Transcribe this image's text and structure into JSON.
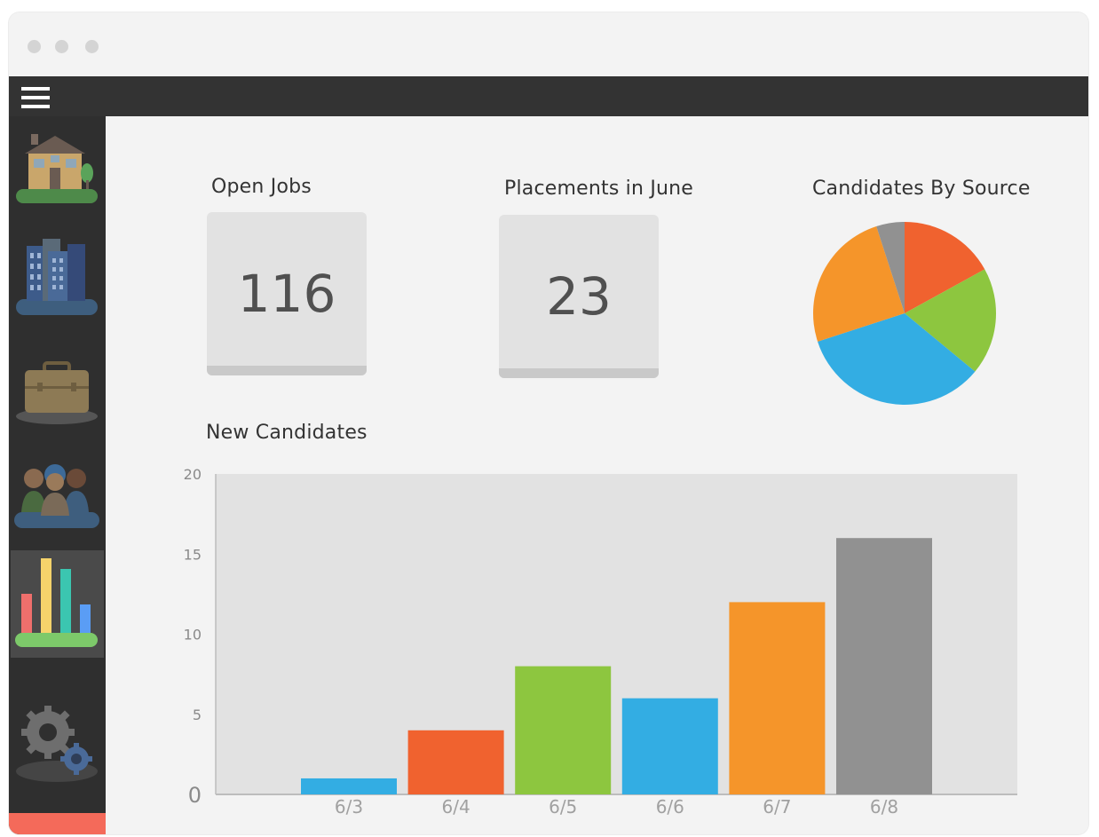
{
  "window": {
    "traffic_lights": [
      "dot",
      "dot",
      "dot"
    ]
  },
  "topbar": {
    "menu_icon": "hamburger-menu-icon"
  },
  "sidebar": {
    "items": [
      {
        "icon": "house-icon",
        "active": false
      },
      {
        "icon": "office-buildings-icon",
        "active": false
      },
      {
        "icon": "briefcase-icon",
        "active": false
      },
      {
        "icon": "people-group-icon",
        "active": false
      },
      {
        "icon": "bar-chart-icon",
        "active": true
      },
      {
        "icon": "gears-icon",
        "active": false
      }
    ],
    "accent_color": "#f46a5a"
  },
  "open_jobs": {
    "title": "Open Jobs",
    "value": "116"
  },
  "placements": {
    "title": "Placements in June",
    "value": "23"
  },
  "candidates_by_source": {
    "title": "Candidates By Source"
  },
  "new_candidates": {
    "title": "New Candidates"
  },
  "chart_data": [
    {
      "type": "pie",
      "title": "Candidates By Source",
      "values": [
        17,
        19,
        34,
        25,
        5
      ],
      "colors": [
        "#f0622f",
        "#8dc63f",
        "#33ade3",
        "#f5952a",
        "#919191"
      ]
    },
    {
      "type": "bar",
      "title": "New Candidates",
      "categories": [
        "6/3",
        "6/4",
        "6/5",
        "6/6",
        "6/7",
        "6/8"
      ],
      "values": [
        1,
        4,
        8,
        6,
        12,
        16
      ],
      "colors": [
        "#33ade3",
        "#f0622f",
        "#8dc63f",
        "#33ade3",
        "#f5952a",
        "#919191"
      ],
      "ylim": [
        0,
        20
      ],
      "yticks": [
        "0",
        "5",
        "10",
        "15",
        "20"
      ],
      "grid": false
    }
  ]
}
